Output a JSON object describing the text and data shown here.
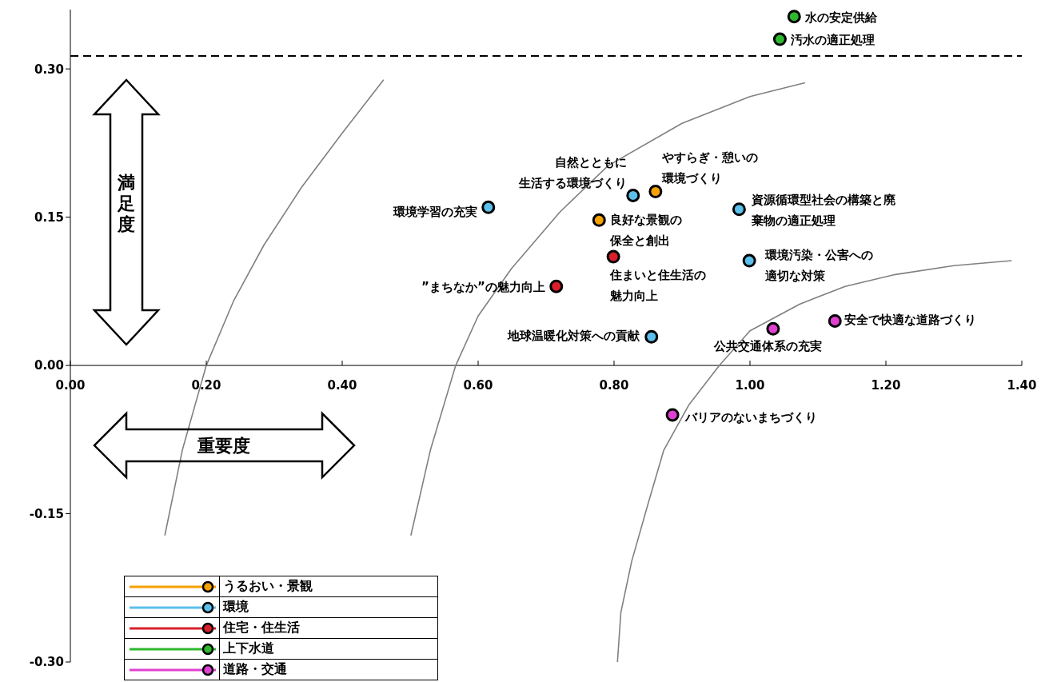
{
  "chart_data": {
    "type": "scatter",
    "xlabel": "重要度",
    "ylabel": "満足度",
    "xlim": [
      0,
      1.4
    ],
    "ylim": [
      -0.3,
      0.36
    ],
    "xticks": [
      {
        "value": 0,
        "label": "0.00"
      },
      {
        "value": 0.2,
        "label": "0.20"
      },
      {
        "value": 0.4,
        "label": "0.40"
      },
      {
        "value": 0.6,
        "label": "0.60"
      },
      {
        "value": 0.8,
        "label": "0.80"
      },
      {
        "value": 1.0,
        "label": "1.00"
      },
      {
        "value": 1.2,
        "label": "1.20"
      },
      {
        "value": 1.4,
        "label": "1.40"
      }
    ],
    "yticks": [
      {
        "value": -0.3,
        "label": "-0.30"
      },
      {
        "value": -0.15,
        "label": "-0.15"
      },
      {
        "value": 0,
        "label": "0.00"
      },
      {
        "value": 0.15,
        "label": "0.15"
      },
      {
        "value": 0.3,
        "label": "0.30"
      }
    ],
    "marker": "circle",
    "grid": false,
    "legend": "bottom left",
    "ref_lines": [
      {
        "axis": "y",
        "value": 0.313,
        "line_style": "dashed",
        "color": "#000000"
      }
    ],
    "series": [
      {
        "name": "うるおい・景観",
        "color": "#f5a100",
        "x": [
          0.861,
          0.778
        ],
        "values": [
          0.176,
          0.147
        ]
      },
      {
        "name": "環境",
        "color": "#5bc0eb",
        "x": [
          0.828,
          0.615,
          0.984,
          0.999,
          0.855
        ],
        "values": [
          0.172,
          0.16,
          0.158,
          0.106,
          0.029
        ]
      },
      {
        "name": "住宅・住生活",
        "color": "#d9202a",
        "x": [
          0.799,
          0.715
        ],
        "values": [
          0.11,
          0.08
        ]
      },
      {
        "name": "上下水道",
        "color": "#2db82d",
        "x": [
          1.065,
          1.044
        ],
        "values": [
          0.353,
          0.33
        ]
      },
      {
        "name": "道路・交通",
        "color": "#e040d0",
        "x": [
          1.125,
          1.034,
          0.886
        ],
        "values": [
          0.045,
          0.037,
          -0.05
        ]
      },
      {
        "type": "line",
        "marker": "none",
        "color": "#808080",
        "x": [
          0.139,
          0.165,
          0.2,
          0.24,
          0.285,
          0.34,
          0.4,
          0.461
        ],
        "values": [
          -0.172,
          -0.085,
          0,
          0.065,
          0.122,
          0.18,
          0.235,
          0.289
        ]
      },
      {
        "type": "line",
        "marker": "none",
        "color": "#808080",
        "x": [
          0.501,
          0.53,
          0.567,
          0.6,
          0.649,
          0.72,
          0.791,
          0.9,
          1.0,
          1.081
        ],
        "values": [
          -0.172,
          -0.085,
          0,
          0.05,
          0.098,
          0.155,
          0.202,
          0.245,
          0.272,
          0.286
        ]
      },
      {
        "type": "line",
        "marker": "none",
        "color": "#808080",
        "x": [
          0.805,
          0.81,
          0.826,
          0.85,
          0.873,
          0.91,
          0.955,
          1.0,
          1.073,
          1.14,
          1.214,
          1.3,
          1.385
        ],
        "values": [
          -0.3,
          -0.25,
          -0.198,
          -0.14,
          -0.086,
          -0.04,
          0,
          0.035,
          0.062,
          0.08,
          0.092,
          0.101,
          0.106
        ]
      }
    ],
    "annotations": [
      {
        "text": "水の安定供給",
        "x": 1.065,
        "y": 0.353
      },
      {
        "text": "汚水の適正処理",
        "x": 1.044,
        "y": 0.33
      },
      {
        "text": "自然とともに生活する環境づくり",
        "x": 0.828,
        "y": 0.172
      },
      {
        "text": "やすらぎ・憩いの環境づくり",
        "x": 0.861,
        "y": 0.176
      },
      {
        "text": "環境学習の充実",
        "x": 0.615,
        "y": 0.16
      },
      {
        "text": "資源循環型社会の構築と廃棄物の適正処理",
        "x": 0.984,
        "y": 0.158
      },
      {
        "text": "良好な景観の保全と創出",
        "x": 0.778,
        "y": 0.147
      },
      {
        "text": "住まいと住生活の魅力向上",
        "x": 0.799,
        "y": 0.11
      },
      {
        "text": "環境汚染・公害への適切な対策",
        "x": 0.999,
        "y": 0.106
      },
      {
        "text": "”まちなか”の魅力向上",
        "x": 0.715,
        "y": 0.08
      },
      {
        "text": "地球温暖化対策への貢献",
        "x": 0.855,
        "y": 0.029
      },
      {
        "text": "安全で快適な道路づくり",
        "x": 1.125,
        "y": 0.045
      },
      {
        "text": "公共交通体系の充実",
        "x": 1.034,
        "y": 0.037
      },
      {
        "text": "バリアのないまちづくり",
        "x": 0.886,
        "y": -0.05
      }
    ]
  }
}
